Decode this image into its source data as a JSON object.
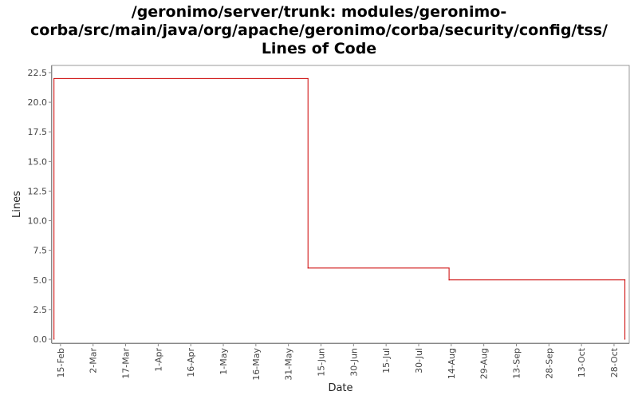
{
  "title_lines": [
    "/geronimo/server/trunk: modules/geronimo-",
    "corba/src/main/java/org/apache/geronimo/corba/security/config/tss/",
    "Lines of Code"
  ],
  "colors": {
    "series": "#cc0000",
    "axis": "#888888",
    "plot_border": "#999999"
  },
  "chart_data": {
    "type": "line",
    "title": "/geronimo/server/trunk: modules/geronimo-corba/src/main/java/org/apache/geronimo/corba/security/config/tss/ Lines of Code",
    "xlabel": "Date",
    "ylabel": "Lines",
    "ylim": [
      0,
      22.5
    ],
    "xlim": [
      "02-11",
      "11-04"
    ],
    "grid": false,
    "step": true,
    "x_ticks": [
      {
        "date": "02-15",
        "label": "15-Feb"
      },
      {
        "date": "03-02",
        "label": "2-Mar"
      },
      {
        "date": "03-17",
        "label": "17-Mar"
      },
      {
        "date": "04-01",
        "label": "1-Apr"
      },
      {
        "date": "04-16",
        "label": "16-Apr"
      },
      {
        "date": "05-01",
        "label": "1-May"
      },
      {
        "date": "05-16",
        "label": "16-May"
      },
      {
        "date": "05-31",
        "label": "31-May"
      },
      {
        "date": "06-15",
        "label": "15-Jun"
      },
      {
        "date": "06-30",
        "label": "30-Jun"
      },
      {
        "date": "07-15",
        "label": "15-Jul"
      },
      {
        "date": "07-30",
        "label": "30-Jul"
      },
      {
        "date": "08-14",
        "label": "14-Aug"
      },
      {
        "date": "08-29",
        "label": "29-Aug"
      },
      {
        "date": "09-13",
        "label": "13-Sep"
      },
      {
        "date": "09-28",
        "label": "28-Sep"
      },
      {
        "date": "10-13",
        "label": "13-Oct"
      },
      {
        "date": "10-28",
        "label": "28-Oct"
      }
    ],
    "y_ticks": [
      {
        "value": 0,
        "label": "0.0"
      },
      {
        "value": 2.5,
        "label": "2.5"
      },
      {
        "value": 5,
        "label": "5.0"
      },
      {
        "value": 7.5,
        "label": "7.5"
      },
      {
        "value": 10,
        "label": "10.0"
      },
      {
        "value": 12.5,
        "label": "12.5"
      },
      {
        "value": 15,
        "label": "15.0"
      },
      {
        "value": 17.5,
        "label": "17.5"
      },
      {
        "value": 20,
        "label": "20.0"
      },
      {
        "value": 22.5,
        "label": "22.5"
      }
    ],
    "series": [
      {
        "points": [
          {
            "x": "02-12",
            "y": 0
          },
          {
            "x": "02-12",
            "y": 22
          },
          {
            "x": "06-09",
            "y": 22
          },
          {
            "x": "06-09",
            "y": 6
          },
          {
            "x": "08-13",
            "y": 6
          },
          {
            "x": "08-13",
            "y": 5
          },
          {
            "x": "11-02",
            "y": 5
          },
          {
            "x": "11-02",
            "y": 0
          }
        ]
      }
    ]
  }
}
